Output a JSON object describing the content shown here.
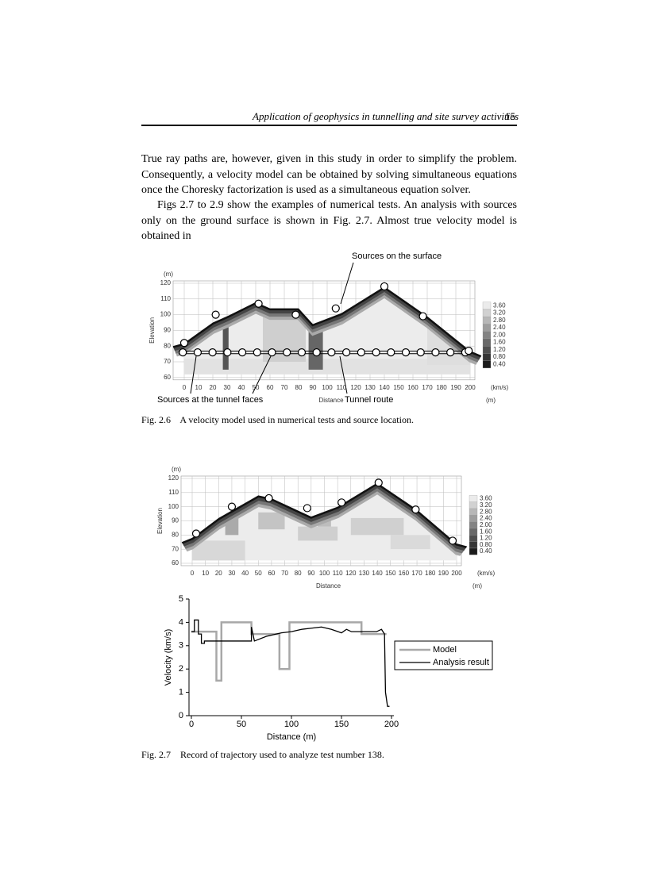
{
  "header": {
    "running_title": "Application of geophysics in tunnelling and site survey activities",
    "page_number": "15"
  },
  "body": {
    "paragraphs": [
      "True ray paths are, however, given in this study in order to simplify the problem. Consequently, a velocity model can be obtained by solving simultaneous equations once the Choresky factorization is used as a simultaneous equation solver.",
      "Figs 2.7 to 2.9 show the examples of numerical tests. An analysis with sources only on the ground surface is shown in Fig. 2.7. Almost true velocity model is obtained in"
    ]
  },
  "figure_2_6": {
    "x_ticks": [
      0,
      10,
      20,
      30,
      40,
      50,
      60,
      70,
      80,
      90,
      100,
      110,
      120,
      130,
      140,
      150,
      160,
      170,
      180,
      190,
      200
    ],
    "y_ticks": [
      60,
      70,
      80,
      90,
      100,
      110,
      120
    ],
    "y_unit": "(m)",
    "y_label": "Elevation",
    "x_label": "Distance",
    "x_unit": "(m)",
    "colorbar_ticks": [
      "3.60",
      "3.20",
      "2.80",
      "2.40",
      "2.00",
      "1.60",
      "1.20",
      "0.80",
      "0.40"
    ],
    "colorbar_unit": "(km/s)",
    "annotations": {
      "surface": "Sources on the surface",
      "faces": "Sources at the tunnel faces",
      "route": "Tunnel route"
    },
    "caption": "Fig. 2.6    A velocity model used in numerical tests and source location."
  },
  "figure_2_7": {
    "x_ticks": [
      0,
      10,
      20,
      30,
      40,
      50,
      60,
      70,
      80,
      90,
      100,
      110,
      120,
      130,
      140,
      150,
      160,
      170,
      180,
      190,
      200
    ],
    "y_ticks": [
      60,
      70,
      80,
      90,
      100,
      110,
      120
    ],
    "y_unit": "(m)",
    "y_label": "Elevation",
    "x_label": "Distance",
    "x_unit": "(m)",
    "colorbar_ticks": [
      "3.60",
      "3.20",
      "2.80",
      "2.40",
      "2.00",
      "1.60",
      "1.20",
      "0.80",
      "0.40"
    ],
    "colorbar_unit": "(km/s)",
    "caption": "Fig. 2.7    Record of trajectory used to analyze test number 138."
  },
  "chart_data": {
    "type": "line",
    "x_label": "Distance (m)",
    "y_label": "Velocity (km/s)",
    "xlim": [
      0,
      200
    ],
    "xticks": [
      0,
      50,
      100,
      150,
      200
    ],
    "ylim": [
      0,
      5
    ],
    "yticks": [
      0,
      1,
      2,
      3,
      4,
      5
    ],
    "series": [
      {
        "name": "Model",
        "color": "#a8a8a8",
        "x": [
          0,
          25,
          25,
          30,
          30,
          60,
          60,
          88,
          88,
          98,
          98,
          170,
          170,
          195
        ],
        "values": [
          3.6,
          3.6,
          1.5,
          1.5,
          4.0,
          4.0,
          3.5,
          3.5,
          2.0,
          2.0,
          4.0,
          4.0,
          3.5,
          3.5
        ]
      },
      {
        "name": "Analysis result",
        "color": "#000000",
        "x": [
          0,
          3,
          3,
          7,
          7,
          10,
          10,
          13,
          13,
          20,
          60,
          60,
          63,
          75,
          90,
          100,
          110,
          120,
          130,
          140,
          150,
          155,
          160,
          170,
          185,
          190,
          193,
          194,
          196,
          198
        ],
        "values": [
          3.6,
          3.6,
          4.1,
          4.1,
          3.5,
          3.5,
          3.1,
          3.1,
          3.2,
          3.2,
          3.2,
          3.8,
          3.2,
          3.4,
          3.55,
          3.6,
          3.7,
          3.75,
          3.8,
          3.7,
          3.55,
          3.7,
          3.6,
          3.6,
          3.6,
          3.7,
          3.5,
          1.0,
          0.4,
          0.4
        ]
      }
    ]
  }
}
